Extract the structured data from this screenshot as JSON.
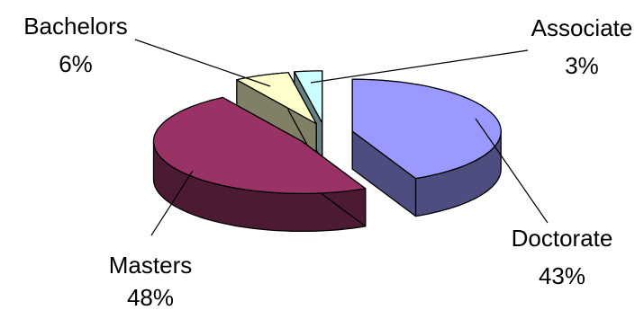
{
  "chart_data": {
    "type": "pie",
    "style": "3d-exploded",
    "title": "",
    "slices": [
      {
        "label": "Doctorate",
        "value": 43,
        "pct_text": "43%",
        "color_top": "#9999ff",
        "color_side": "#4d4d80"
      },
      {
        "label": "Masters",
        "value": 48,
        "pct_text": "48%",
        "color_top": "#993366",
        "color_side": "#4d1a33"
      },
      {
        "label": "Bachelors",
        "value": 6,
        "pct_text": "6%",
        "color_top": "#ffffcc",
        "color_side": "#808066"
      },
      {
        "label": "Associate",
        "value": 3,
        "pct_text": "3%",
        "color_top": "#ccffff",
        "color_side": "#668080"
      }
    ],
    "legend": "none",
    "labels": "outside-with-leader-lines"
  }
}
